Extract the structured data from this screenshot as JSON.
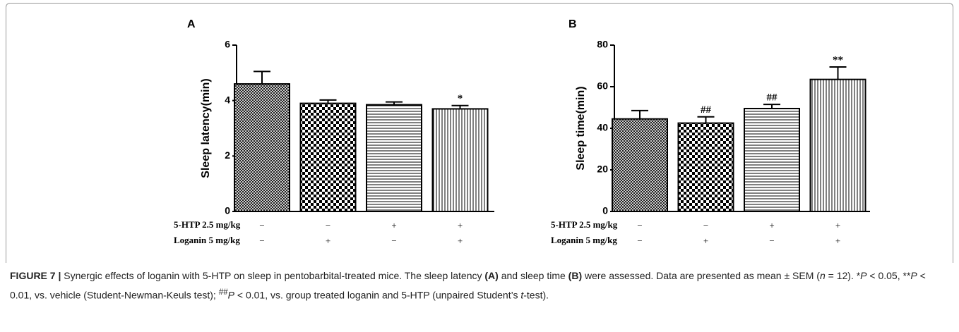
{
  "chart_data": [
    {
      "type": "bar",
      "panel": "A",
      "ylabel": "Sleep latency(min)",
      "values": [
        4.6,
        3.9,
        3.85,
        3.7
      ],
      "errors": [
        0.45,
        0.12,
        0.1,
        0.12
      ],
      "annotations": [
        null,
        null,
        null,
        "*"
      ],
      "ylim": [
        0,
        6
      ],
      "yticks": [
        0,
        2,
        4,
        6
      ],
      "color": "#000000",
      "conditions": [
        {
          "label": "5-HTP 2.5 mg/kg",
          "signs": [
            "−",
            "−",
            "+",
            "+"
          ]
        },
        {
          "label": "Loganin 5 mg/kg",
          "signs": [
            "−",
            "+",
            "−",
            "+"
          ]
        }
      ]
    },
    {
      "type": "bar",
      "panel": "B",
      "ylabel": "Sleep time(min)",
      "values": [
        44.5,
        42.5,
        49.5,
        63.5
      ],
      "errors": [
        4,
        3,
        2,
        6
      ],
      "annotations": [
        null,
        "##",
        "##",
        "**"
      ],
      "ylim": [
        0,
        80
      ],
      "yticks": [
        0,
        20,
        40,
        60,
        80
      ],
      "color": "#000000",
      "conditions": [
        {
          "label": "5-HTP 2.5 mg/kg",
          "signs": [
            "−",
            "−",
            "+",
            "+"
          ]
        },
        {
          "label": "Loganin 5 mg/kg",
          "signs": [
            "−",
            "+",
            "−",
            "+"
          ]
        }
      ]
    }
  ],
  "caption": {
    "parts": [
      "FIGURE 7 |",
      " Synergic effects of loganin with 5-HTP on sleep in pentobarbital-treated mice. The sleep latency ",
      "(A)",
      " and sleep time ",
      "(B)",
      " were assessed. Data are presented as mean ± SEM (",
      "n",
      " = 12). *",
      "P",
      " < 0.05, **",
      "P",
      " < 0.01, vs. vehicle (Student-Newman-Keuls test); ",
      "##",
      "P",
      " < 0.01, vs. group treated loganin and 5-HTP (unpaired Student’s ",
      "t",
      "-test)."
    ]
  }
}
